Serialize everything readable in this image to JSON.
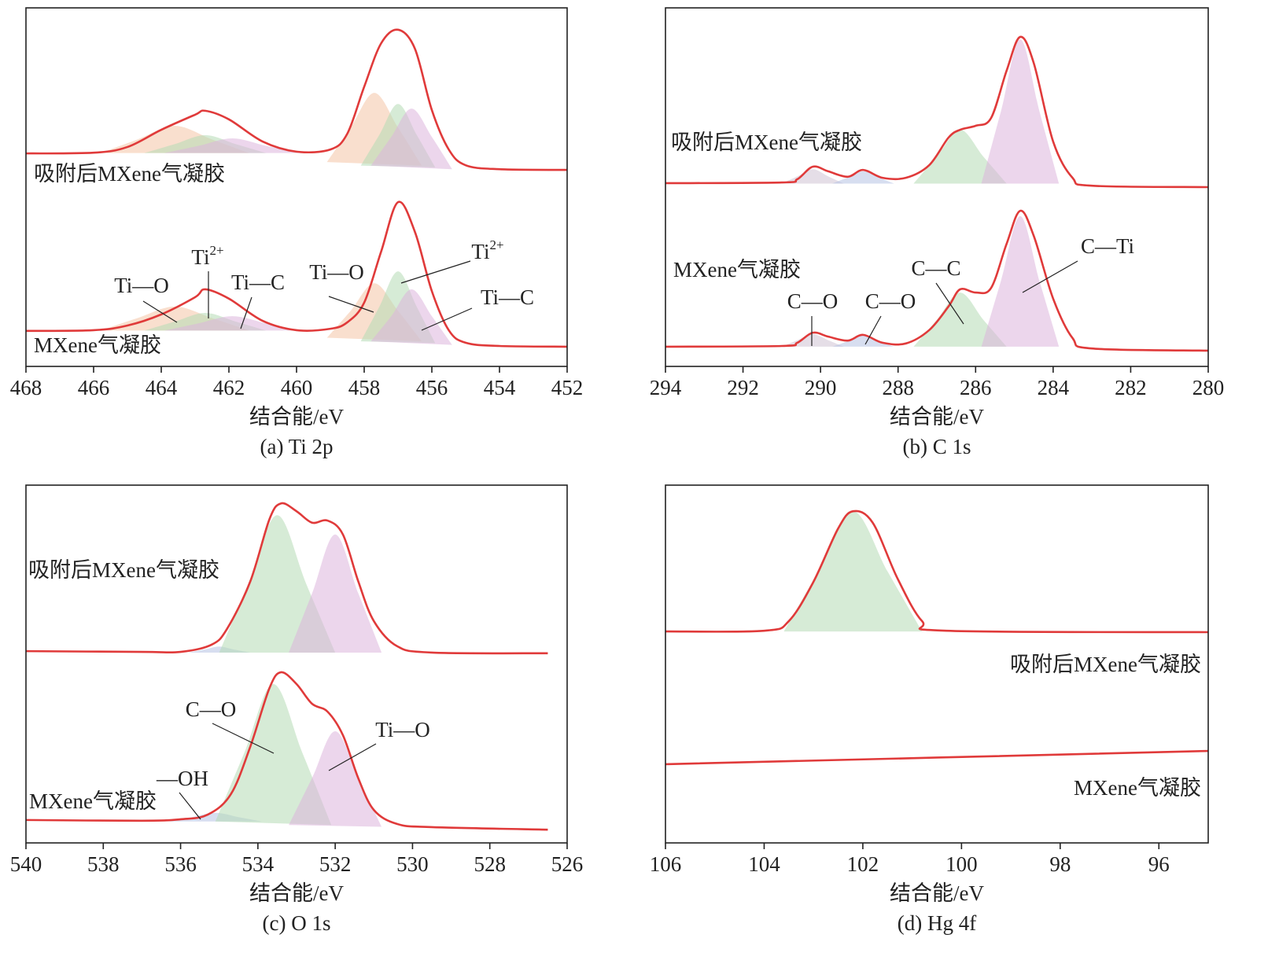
{
  "chart_data": [
    {
      "type": "line",
      "caption": "(a) Ti 2p",
      "xlabel": "结合能/eV",
      "xlim": [
        468,
        452
      ],
      "xticks": [
        468,
        466,
        464,
        462,
        460,
        458,
        456,
        454,
        452
      ],
      "ylim": [
        0,
        100
      ],
      "series": [
        {
          "name": "吸附后MXene气凝胶",
          "color": "#e03a3a",
          "x": [
            468,
            466,
            465,
            464,
            463,
            462.7,
            462,
            461,
            460,
            459,
            458.5,
            458,
            457.5,
            457,
            456.5,
            456,
            455.5,
            455,
            454,
            452
          ],
          "values": [
            59.4,
            59.6,
            61.2,
            66,
            70.2,
            71.3,
            68.9,
            62.7,
            59.9,
            60.5,
            64.9,
            78,
            90.1,
            93.9,
            88.6,
            71.5,
            60.5,
            56.1,
            55,
            54.8
          ]
        },
        {
          "name": "MXene气凝胶",
          "color": "#e03a3a",
          "x": [
            468,
            466,
            465,
            464,
            463,
            462.7,
            462,
            461,
            460,
            459,
            458.5,
            458,
            457.5,
            457,
            456.5,
            456,
            455.5,
            455,
            454,
            452
          ],
          "values": [
            9.9,
            10.1,
            11.4,
            14.5,
            19.3,
            21.5,
            18.9,
            12.7,
            10.1,
            10.5,
            12.3,
            17.8,
            32,
            45.8,
            37.5,
            21,
            10.1,
            6.6,
            5.7,
            5.5
          ]
        }
      ],
      "components": [
        {
          "color": "#f4c4a6",
          "x": [
            465.8,
            464.7,
            463.6,
            462.5,
            461.4
          ],
          "values": [
            59.5,
            63.3,
            67.1,
            63.3,
            59.5
          ]
        },
        {
          "color": "#b5dbb5",
          "x": [
            464.5,
            463.6,
            462.7,
            461.8,
            460.9
          ],
          "values": [
            59.5,
            62,
            64.5,
            62,
            59.5
          ]
        },
        {
          "color": "#dcb5dc",
          "x": [
            463.9,
            462.9,
            461.9,
            460.9,
            459.9
          ],
          "values": [
            59.5,
            61.5,
            63.6,
            61.5,
            59.5
          ]
        },
        {
          "color": "#f4c4a6",
          "x": [
            459.1,
            458.4,
            457.7,
            457,
            456.3
          ],
          "values": [
            57,
            66.6,
            76.3,
            66.6,
            56
          ]
        },
        {
          "color": "#b5dbb5",
          "x": [
            458.1,
            457.55,
            457,
            456.45,
            455.9
          ],
          "values": [
            56,
            64.6,
            73.2,
            64.6,
            55.5
          ]
        },
        {
          "color": "#dcb5dc",
          "x": [
            457.8,
            457.2,
            456.6,
            456,
            455.4
          ],
          "values": [
            56,
            64,
            71.9,
            64,
            55
          ]
        },
        {
          "color": "#f4c4a6",
          "x": [
            465.8,
            464.7,
            463.6,
            462.5,
            461.4
          ],
          "values": [
            10,
            13.5,
            16.7,
            13.5,
            10
          ]
        },
        {
          "color": "#b5dbb5",
          "x": [
            464.5,
            463.6,
            462.7,
            461.8,
            460.9
          ],
          "values": [
            10,
            12.5,
            14.9,
            12.5,
            10
          ]
        },
        {
          "color": "#dcb5dc",
          "x": [
            463.9,
            462.9,
            461.9,
            460.9,
            459.9
          ],
          "values": [
            10,
            12,
            14,
            12,
            10
          ]
        },
        {
          "color": "#f4c4a6",
          "x": [
            459.1,
            458.4,
            457.7,
            457,
            456.3
          ],
          "values": [
            8,
            15.5,
            23.2,
            15.5,
            7
          ]
        },
        {
          "color": "#b5dbb5",
          "x": [
            458.1,
            457.55,
            457,
            456.45,
            455.9
          ],
          "values": [
            7,
            16.7,
            26.5,
            16.7,
            6.5
          ]
        },
        {
          "color": "#dcb5dc",
          "x": [
            457.8,
            457.2,
            456.6,
            456,
            455.4
          ],
          "values": [
            7,
            14,
            21.5,
            14,
            6
          ]
        }
      ],
      "annotations": [
        {
          "text": "Ti—O"
        },
        {
          "text": "Ti",
          "sup": "2+"
        },
        {
          "text": "Ti—C"
        },
        {
          "text": "Ti—O"
        },
        {
          "text": "Ti",
          "sup": "2+"
        },
        {
          "text": "Ti—C"
        }
      ]
    },
    {
      "type": "line",
      "caption": "(b) C 1s",
      "xlabel": "结合能/eV",
      "xlim": [
        294,
        280
      ],
      "xticks": [
        294,
        292,
        290,
        288,
        286,
        284,
        282,
        280
      ],
      "ylim": [
        0,
        100
      ],
      "series": [
        {
          "name": "吸附后MXene气凝胶",
          "color": "#e03a3a",
          "x": [
            294,
            291,
            290.6,
            290.2,
            289.8,
            289.3,
            288.9,
            288.4,
            287.8,
            287.2,
            286.7,
            286.4,
            286,
            285.6,
            285.2,
            284.85,
            284.5,
            284,
            283.5,
            283,
            280
          ],
          "values": [
            51.1,
            51.3,
            52.2,
            55.7,
            54.4,
            52.9,
            54.8,
            52.6,
            52.6,
            56.1,
            63.8,
            66,
            67.1,
            69.3,
            82.5,
            91.9,
            84.6,
            62.7,
            52.6,
            50.4,
            50
          ]
        },
        {
          "name": "MXene气凝胶",
          "color": "#e03a3a",
          "x": [
            294,
            291,
            290.6,
            290.2,
            289.8,
            289.3,
            288.9,
            288.4,
            287.8,
            287.2,
            286.7,
            286.4,
            286,
            285.6,
            285.2,
            284.85,
            284.5,
            284,
            283.5,
            283,
            280
          ],
          "values": [
            5.5,
            5.7,
            6.6,
            9.4,
            8.3,
            7.2,
            8.8,
            6.6,
            6.4,
            10.1,
            16.7,
            21.5,
            20.6,
            21.9,
            34.2,
            43.4,
            36.4,
            18.9,
            7.9,
            5,
            4.4
          ]
        }
      ],
      "components": [
        {
          "color": "#cfc3d3",
          "x": [
            291,
            290.6,
            290.2,
            289.8,
            289.4
          ],
          "values": [
            51,
            53,
            55,
            53,
            51
          ]
        },
        {
          "color": "#b7c3e3",
          "x": [
            289.7,
            289.3,
            288.9,
            288.5,
            288.1
          ],
          "values": [
            51,
            52.7,
            54.4,
            52.7,
            51
          ]
        },
        {
          "color": "#b5dbb5",
          "x": [
            287.6,
            287,
            286.4,
            285.8,
            285.2
          ],
          "values": [
            51,
            58.5,
            66,
            58.5,
            51
          ]
        },
        {
          "color": "#dcb5dc",
          "x": [
            285.85,
            285.35,
            284.85,
            284.35,
            283.85
          ],
          "values": [
            51,
            71,
            91.2,
            71,
            51
          ]
        },
        {
          "color": "#cfc3d3",
          "x": [
            291,
            290.6,
            290.2,
            289.8,
            289.4
          ],
          "values": [
            5.5,
            7.3,
            9,
            7.3,
            5.5
          ]
        },
        {
          "color": "#b7c3e3",
          "x": [
            289.7,
            289.3,
            288.9,
            288.5,
            288.1
          ],
          "values": [
            5.5,
            7,
            8.6,
            7,
            5.5
          ]
        },
        {
          "color": "#b5dbb5",
          "x": [
            287.6,
            287,
            286.4,
            285.8,
            285.2
          ],
          "values": [
            5.5,
            13,
            20.6,
            13,
            5.5
          ]
        },
        {
          "color": "#dcb5dc",
          "x": [
            285.85,
            285.35,
            284.85,
            284.35,
            283.85
          ],
          "values": [
            5.5,
            23.7,
            41.9,
            23.7,
            5.5
          ]
        }
      ],
      "annotations": [
        {
          "text": "C—O"
        },
        {
          "text": "C—O"
        },
        {
          "text": "C—C"
        },
        {
          "text": "C—Ti"
        }
      ]
    },
    {
      "type": "line",
      "caption": "(c) O 1s",
      "xlabel": "结合能/eV",
      "xlim": [
        540,
        526
      ],
      "xticks": [
        540,
        538,
        536,
        534,
        532,
        530,
        528,
        526
      ],
      "ylim": [
        0,
        100
      ],
      "series": [
        {
          "name": "吸附后MXene气凝胶",
          "color": "#e03a3a",
          "x": [
            540,
            537,
            536,
            535.2,
            534.8,
            534.2,
            533.7,
            533.4,
            533,
            532.6,
            532.2,
            531.8,
            531.4,
            531,
            530.4,
            529.5,
            526.5
          ],
          "values": [
            53.6,
            53.4,
            53.4,
            55.4,
            59.8,
            73,
            90.5,
            94.9,
            92.7,
            89.5,
            90.1,
            86.2,
            73,
            62,
            55,
            53.2,
            53
          ]
        },
        {
          "name": "MXene气凝胶",
          "color": "#e03a3a",
          "x": [
            540,
            537,
            536,
            535.3,
            534.7,
            534.2,
            533.7,
            533.4,
            533,
            532.6,
            532.2,
            531.8,
            531.4,
            531,
            530.4,
            529.5,
            526.5
          ],
          "values": [
            6.4,
            6.2,
            6.6,
            7.9,
            13.6,
            26.8,
            43.3,
            47.7,
            44.4,
            38.9,
            36.7,
            30.1,
            18,
            9.2,
            5.3,
            4.4,
            3.7
          ]
        }
      ],
      "components": [
        {
          "color": "#b7c3e3",
          "x": [
            535.8,
            535.4,
            535,
            534.6,
            534.2
          ],
          "values": [
            53.2,
            54,
            54.9,
            54,
            53.2
          ]
        },
        {
          "color": "#b5dbb5",
          "x": [
            535,
            534.25,
            533.5,
            532.75,
            532
          ],
          "values": [
            53.2,
            72.4,
            91.6,
            72.4,
            53.2
          ]
        },
        {
          "color": "#dcb5dc",
          "x": [
            533.2,
            532.6,
            532,
            531.4,
            530.8
          ],
          "values": [
            53.2,
            69.7,
            86.2,
            69.7,
            53.2
          ]
        },
        {
          "color": "#b7c3e3",
          "x": [
            536.3,
            535.7,
            535.1,
            534.5,
            533.9
          ],
          "values": [
            6,
            7.2,
            8.4,
            7.2,
            6
          ]
        },
        {
          "color": "#b5dbb5",
          "x": [
            535.1,
            534.35,
            533.6,
            532.85,
            532.1
          ],
          "values": [
            6,
            25.2,
            44.4,
            25.2,
            5
          ]
        },
        {
          "color": "#dcb5dc",
          "x": [
            533.2,
            532.6,
            532,
            531.4,
            530.8
          ],
          "values": [
            5,
            18.1,
            31.2,
            18.1,
            4.5
          ]
        }
      ],
      "annotations": [
        {
          "text": "C—O"
        },
        {
          "text": "Ti—O"
        },
        {
          "text": "—OH"
        }
      ]
    },
    {
      "type": "line",
      "caption": "(d) Hg 4f",
      "xlabel": "结合能/eV",
      "xlim": [
        106,
        95
      ],
      "xticks": [
        106,
        104,
        102,
        100,
        98,
        96
      ],
      "ylim": [
        0,
        100
      ],
      "series": [
        {
          "name": "吸附后MXene气凝胶",
          "color": "#e03a3a",
          "x": [
            106,
            104,
            103.5,
            103,
            102.5,
            102.2,
            101.8,
            101.3,
            100.8,
            100.3,
            95
          ],
          "values": [
            59.1,
            59.3,
            62,
            73,
            87.9,
            92.7,
            89.5,
            74,
            62,
            59.3,
            58.9
          ]
        },
        {
          "name": "MXene气凝胶",
          "color": "#e03a3a",
          "x": [
            106,
            95
          ],
          "values": [
            22,
            25.7
          ]
        }
      ],
      "components": [
        {
          "color": "#b5dbb5",
          "x": [
            103.6,
            102.9,
            102.2,
            101.5,
            100.8
          ],
          "values": [
            59.1,
            75.9,
            92.7,
            75.9,
            59.1
          ]
        }
      ],
      "annotations": []
    }
  ]
}
